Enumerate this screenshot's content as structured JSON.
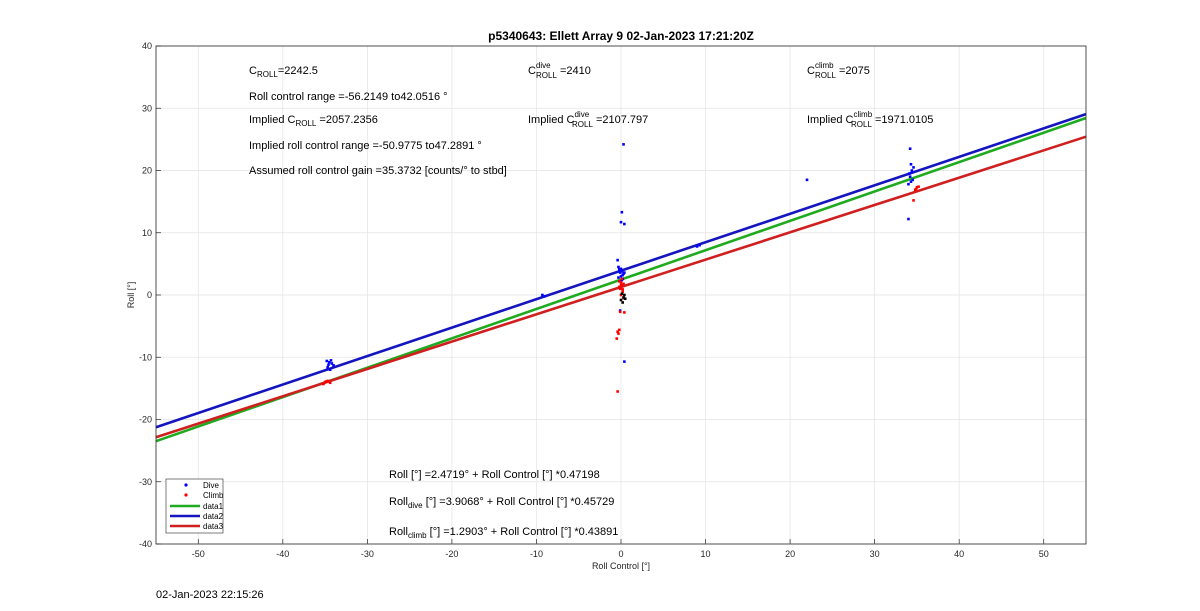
{
  "chart_data": {
    "type": "scatter",
    "title": "p5340643: Ellett Array 9 02-Jan-2023 17:21:20Z",
    "xlabel": "Roll Control [°]",
    "ylabel": "Roll [°]",
    "xlim": [
      -55,
      55
    ],
    "ylim": [
      -40,
      40
    ],
    "xticks": [
      "-50",
      "-40",
      "-30",
      "-20",
      "-10",
      "0",
      "10",
      "20",
      "30",
      "40",
      "50"
    ],
    "yticks": [
      "-40",
      "-30",
      "-20",
      "-10",
      "0",
      "10",
      "20",
      "30",
      "40"
    ],
    "grid": true,
    "legend_position": "bottom-left",
    "legend": [
      "Dive",
      "Climb",
      "data1",
      "data2",
      "data3"
    ],
    "colors": {
      "dive": "#0000ff",
      "climb": "#ff0000",
      "data1": "#1faa1f",
      "data2": "#1515c0",
      "data3": "#d01f1f",
      "center": "#000000"
    },
    "series": [
      {
        "name": "Dive",
        "kind": "points",
        "color": "#0000ff",
        "points": [
          [
            -34.8,
            -10.6
          ],
          [
            -34.5,
            -10.8
          ],
          [
            -34.2,
            -11.0
          ],
          [
            -34.6,
            -11.2
          ],
          [
            -34.3,
            -10.5
          ],
          [
            -34.0,
            -11.3
          ],
          [
            -34.7,
            -11.6
          ],
          [
            -34.4,
            -12.0
          ],
          [
            -9.3,
            0.0
          ],
          [
            -9.0,
            -0.2
          ],
          [
            -0.4,
            5.6
          ],
          [
            -0.3,
            4.5
          ],
          [
            0.0,
            4.2
          ],
          [
            -0.2,
            4.0
          ],
          [
            0.1,
            3.8
          ],
          [
            -0.1,
            3.6
          ],
          [
            0.3,
            3.4
          ],
          [
            0.2,
            3.2
          ],
          [
            0.0,
            3.0
          ],
          [
            -0.3,
            2.8
          ],
          [
            0.2,
            2.6
          ],
          [
            0.1,
            2.4
          ],
          [
            0.4,
            3.6
          ],
          [
            -0.2,
            4.2
          ],
          [
            0.3,
            24.2
          ],
          [
            0.1,
            13.3
          ],
          [
            0.0,
            11.7
          ],
          [
            0.4,
            11.4
          ],
          [
            0.4,
            -10.7
          ],
          [
            -0.1,
            -2.5
          ],
          [
            9.0,
            7.8
          ],
          [
            9.3,
            8.0
          ],
          [
            22.0,
            18.5
          ],
          [
            34.2,
            19.0
          ],
          [
            34.4,
            20.0
          ],
          [
            34.3,
            21.0
          ],
          [
            34.1,
            19.5
          ],
          [
            34.5,
            18.5
          ],
          [
            34.2,
            23.5
          ],
          [
            34.0,
            17.8
          ],
          [
            34.3,
            18.2
          ],
          [
            34.6,
            20.5
          ],
          [
            34.4,
            19.8
          ],
          [
            34.0,
            12.2
          ]
        ]
      },
      {
        "name": "Climb",
        "kind": "points",
        "color": "#ff0000",
        "points": [
          [
            -35.0,
            -14.0
          ],
          [
            -34.7,
            -13.8
          ],
          [
            -34.4,
            -14.1
          ],
          [
            -35.2,
            -14.3
          ],
          [
            -34.9,
            -13.9
          ],
          [
            -0.4,
            -15.5
          ],
          [
            -0.5,
            -7.0
          ],
          [
            -0.3,
            -6.2
          ],
          [
            -0.2,
            -5.6
          ],
          [
            -0.4,
            -5.9
          ],
          [
            0.0,
            2.0
          ],
          [
            0.1,
            1.5
          ],
          [
            -0.1,
            1.0
          ],
          [
            0.2,
            0.5
          ],
          [
            0.0,
            0.0
          ],
          [
            0.3,
            1.8
          ],
          [
            -0.2,
            2.2
          ],
          [
            0.1,
            2.6
          ],
          [
            0.3,
            -0.5
          ],
          [
            -0.2,
            1.3
          ],
          [
            0.2,
            0.9
          ],
          [
            0.0,
            1.6
          ],
          [
            0.4,
            -2.8
          ],
          [
            -0.1,
            -2.7
          ],
          [
            34.6,
            15.2
          ],
          [
            34.9,
            17.0
          ],
          [
            35.2,
            17.4
          ],
          [
            34.8,
            16.9
          ],
          [
            35.0,
            17.3
          ]
        ]
      },
      {
        "name": "",
        "kind": "points",
        "color": "#000000",
        "points": [
          [
            0.1,
            0.2
          ],
          [
            0.3,
            -0.4
          ],
          [
            0.0,
            -0.8
          ],
          [
            0.2,
            -1.2
          ],
          [
            0.4,
            0.0
          ],
          [
            0.5,
            -0.6
          ]
        ]
      },
      {
        "name": "data1",
        "kind": "line",
        "color": "#1faa1f",
        "intercept": 2.4719,
        "slope": 0.47198
      },
      {
        "name": "data2",
        "kind": "line",
        "color": "#1515c0",
        "intercept": 3.9068,
        "slope": 0.45729
      },
      {
        "name": "data3",
        "kind": "line",
        "color": "#d01f1f",
        "intercept": 1.2903,
        "slope": 0.43891
      }
    ]
  },
  "annotations": {
    "c_roll_base": "C",
    "c_roll_sub": "ROLL",
    "c_roll_val": "=2242.5",
    "range_text": "Roll control range =-56.2149 to42.0516 °",
    "implied_pre": "Implied C",
    "implied_c_val": " =2057.2356",
    "implied_range_text": "Implied roll control range =-50.9775 to47.2891 °",
    "gain_text": "Assumed roll control gain =35.3732 [counts/° to stbd]",
    "dive_sup": "dive",
    "dive_val": " =2410",
    "implied_dive_val": " =2107.797",
    "climb_sup": "climb",
    "climb_val": " =2075",
    "implied_climb_val": " =1971.0105",
    "eq_all": "Roll [°] =2.4719° + Roll Control [°] *0.47198",
    "eq_dive_pre": "Roll",
    "eq_dive_sub": "dive",
    "eq_dive_rest": " [°] =3.9068° + Roll Control [°] *0.45729",
    "eq_climb_pre": "Roll",
    "eq_climb_sub": "climb",
    "eq_climb_rest": " [°] =1.2903° + Roll Control [°] *0.43891"
  },
  "footer": {
    "timestamp": "02-Jan-2023 22:15:26"
  }
}
